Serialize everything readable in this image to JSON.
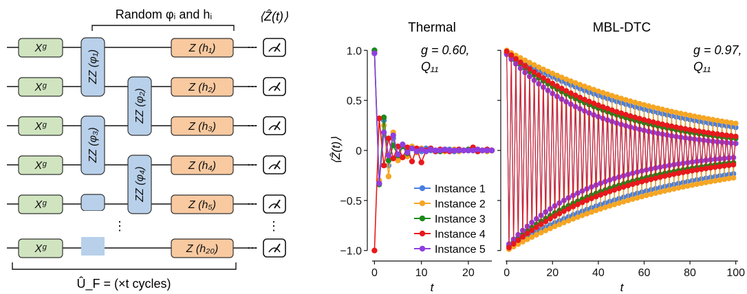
{
  "circuit": {
    "header_text": "Random φᵢ and hᵢ",
    "measure_label": "⟨Ẑ(t)⟩",
    "x_gate": "Xᵍ",
    "zz_gates": [
      "ZZ (φ₁)",
      "ZZ (φ₂)",
      "ZZ (φ₃)",
      "ZZ (φ₄)"
    ],
    "z_gates": [
      "Z (h₁)",
      "Z (h₂)",
      "Z (h₃)",
      "Z (h₄)",
      "Z (h₅)",
      "Z (h₂₀)"
    ],
    "ellipsis_dots": "⋯",
    "vertical_dots": "⋮",
    "footer_text": "Û_F = (×t cycles)"
  },
  "chart_data": [
    {
      "type": "line",
      "title": "Thermal",
      "annotation": [
        "g = 0.60,",
        "Q₁₁"
      ],
      "xlabel": "t",
      "ylabel": "⟨Ẑ(t)⟩",
      "xlim": [
        -0.5,
        25
      ],
      "ylim": [
        -1.05,
        1.05
      ],
      "xticks": [
        0,
        10,
        20
      ],
      "yticks": [
        -1.0,
        -0.5,
        0,
        0.5,
        1.0
      ],
      "ytick_labels": [
        "−1.0",
        "−0.5",
        "0",
        "0.5",
        "1.0"
      ],
      "legend": "center-right",
      "series": [
        {
          "name": "Instance 1",
          "color": "#4a7fe0",
          "values": [
            1.0,
            -0.33,
            0.3,
            -0.15,
            0.12,
            -0.06,
            0.05,
            -0.02,
            0.03,
            0.01,
            -0.01,
            0.02,
            0.0,
            -0.01,
            0.01,
            0.0,
            0.01,
            -0.01,
            0.01,
            0.0,
            0.0,
            0.01,
            -0.01,
            0.0,
            0.01,
            0.0
          ]
        },
        {
          "name": "Instance 2",
          "color": "#f5a623",
          "values": [
            0.98,
            -0.3,
            0.25,
            -0.26,
            0.18,
            -0.1,
            0.05,
            -0.06,
            0.04,
            -0.02,
            0.02,
            -0.01,
            0.01,
            0.0,
            0.01,
            -0.01,
            0.0,
            0.01,
            -0.01,
            0.0,
            0.0,
            0.01,
            0.0,
            0.0,
            -0.01,
            0.0
          ]
        },
        {
          "name": "Instance 3",
          "color": "#1a8a1a",
          "values": [
            1.0,
            -0.34,
            0.33,
            -0.1,
            0.05,
            -0.05,
            0.04,
            -0.03,
            0.02,
            -0.01,
            0.01,
            0.0,
            0.01,
            0.0,
            -0.01,
            0.01,
            0.0,
            0.0,
            0.0,
            0.0,
            0.01,
            0.0,
            0.0,
            0.0,
            0.0,
            0.0
          ]
        },
        {
          "name": "Instance 4",
          "color": "#e8181c",
          "values": [
            -1.0,
            0.32,
            -0.15,
            0.12,
            -0.08,
            0.04,
            -0.07,
            0.03,
            -0.11,
            0.02,
            -0.12,
            0.0,
            0.02,
            -0.01,
            0.01,
            0.0,
            -0.01,
            0.0,
            0.01,
            0.0,
            0.0,
            0.03,
            -0.01,
            0.0,
            0.01,
            0.0
          ]
        },
        {
          "name": "Instance 5",
          "color": "#8e3fe0",
          "values": [
            0.97,
            -0.33,
            0.18,
            -0.05,
            0.15,
            -0.04,
            0.06,
            -0.02,
            0.02,
            -0.01,
            0.01,
            -0.01,
            0.01,
            0.0,
            0.0,
            0.01,
            0.0,
            0.0,
            0.0,
            0.0,
            0.0,
            0.0,
            0.01,
            0.0,
            0.0,
            0.0
          ]
        }
      ]
    },
    {
      "type": "line",
      "title": "MBL-DTC",
      "annotation": [
        "g = 0.97,",
        "Q₁₁"
      ],
      "xlabel": "t",
      "xlim": [
        -0.5,
        101
      ],
      "ylim": [
        -1.05,
        1.05
      ],
      "xticks": [
        0,
        20,
        40,
        60,
        80,
        100
      ],
      "series": [
        {
          "name": "Instance 1",
          "color": "#4a7fe0",
          "amplitude_at_t0": 0.98,
          "amplitude_at_t100": 0.23
        },
        {
          "name": "Instance 2",
          "color": "#f5a623",
          "amplitude_at_t0": 1.0,
          "amplitude_at_t100": 0.27
        },
        {
          "name": "Instance 3",
          "color": "#1a8a1a",
          "amplitude_at_t0": 0.97,
          "amplitude_at_t100": 0.12
        },
        {
          "name": "Instance 4",
          "color": "#e8181c",
          "amplitude_at_t0": 0.99,
          "amplitude_at_t100": 0.14
        },
        {
          "name": "Instance 5",
          "color": "#8e3fe0",
          "amplitude_at_t0": 0.96,
          "amplitude_at_t100": 0.07
        }
      ]
    }
  ]
}
